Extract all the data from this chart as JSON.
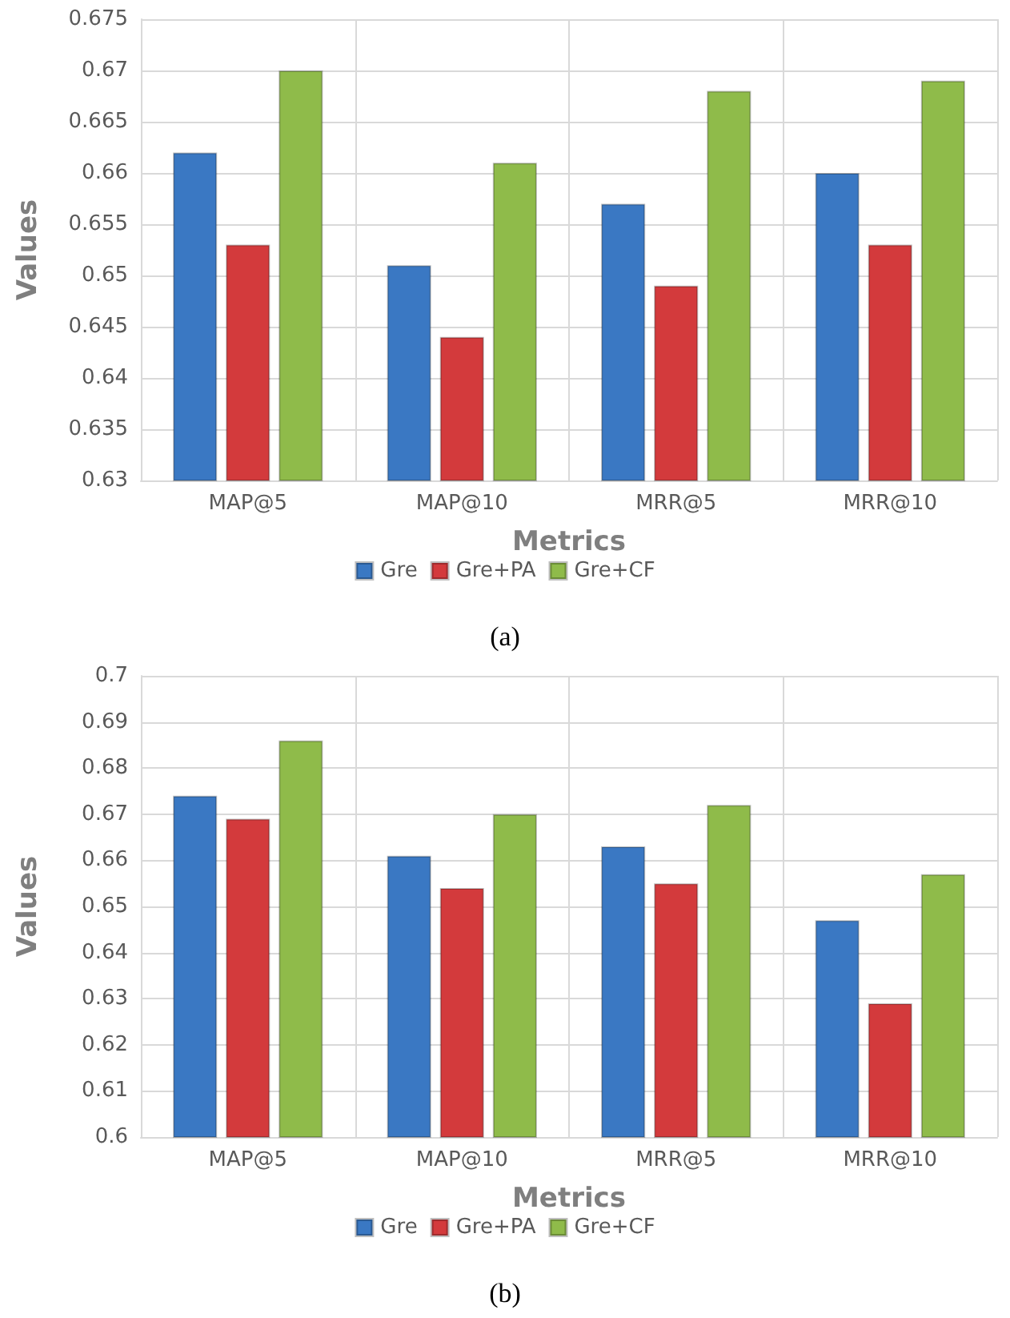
{
  "chart_data": [
    {
      "type": "bar",
      "xlabel": "Metrics",
      "ylabel": "Values",
      "categories": [
        "MAP@5",
        "MAP@10",
        "MRR@5",
        "MRR@10"
      ],
      "series": [
        {
          "name": "Gre",
          "color": "#3a78c3",
          "values": [
            0.662,
            0.651,
            0.657,
            0.66
          ]
        },
        {
          "name": "Gre+PA",
          "color": "#d33a3c",
          "values": [
            0.653,
            0.644,
            0.649,
            0.653
          ]
        },
        {
          "name": "Gre+CF",
          "color": "#8fbb4a",
          "values": [
            0.67,
            0.661,
            0.668,
            0.669
          ]
        }
      ],
      "ylim": [
        0.63,
        0.675
      ],
      "yticks": [
        0.63,
        0.635,
        0.64,
        0.645,
        0.65,
        0.655,
        0.66,
        0.665,
        0.67,
        0.675
      ],
      "grid": true,
      "legend": "bottom",
      "annotations": [
        "(a)"
      ]
    },
    {
      "type": "bar",
      "xlabel": "Metrics",
      "ylabel": "Values",
      "categories": [
        "MAP@5",
        "MAP@10",
        "MRR@5",
        "MRR@10"
      ],
      "series": [
        {
          "name": "Gre",
          "color": "#3a78c3",
          "values": [
            0.674,
            0.661,
            0.663,
            0.647
          ]
        },
        {
          "name": "Gre+PA",
          "color": "#d33a3c",
          "values": [
            0.669,
            0.654,
            0.655,
            0.629
          ]
        },
        {
          "name": "Gre+CF",
          "color": "#8fbb4a",
          "values": [
            0.686,
            0.67,
            0.672,
            0.657
          ]
        }
      ],
      "ylim": [
        0.6,
        0.7
      ],
      "yticks": [
        0.6,
        0.61,
        0.62,
        0.63,
        0.64,
        0.65,
        0.66,
        0.67,
        0.68,
        0.69,
        0.7
      ],
      "grid": true,
      "legend": "bottom",
      "annotations": [
        "(b)"
      ]
    }
  ]
}
